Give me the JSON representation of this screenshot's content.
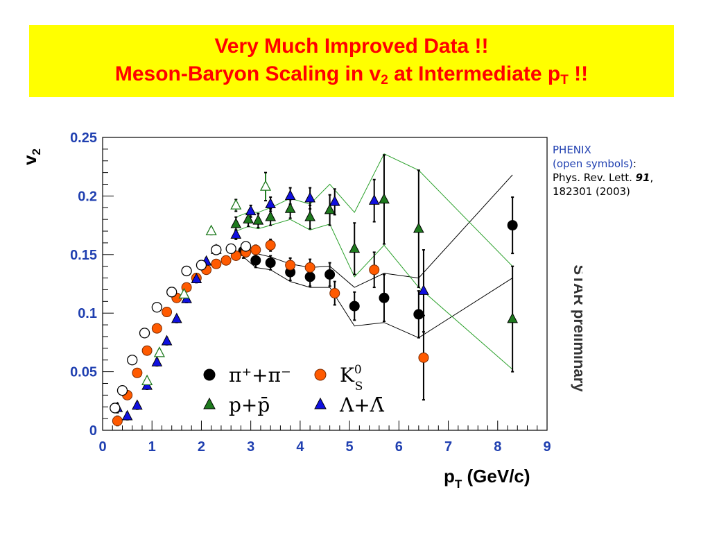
{
  "title": {
    "line1": "Very Much Improved Data !!",
    "line2_a": "Meson-Baryon Scaling in v",
    "line2_sub": "2",
    "line2_b": " at Intermediate p",
    "line2_sub2": "T",
    "line2_c": " !!"
  },
  "note": {
    "line1": "PHENIX",
    "line2": "(open symbols)",
    "line2_colon": ":",
    "line3_a": "Phys. Rev. Lett. ",
    "line3_vol": "91",
    "line3_b": ",",
    "line4": "182301 (2003)"
  },
  "star_label": "STAR preliminary",
  "colors": {
    "title_bg": "#ffff00",
    "title_text": "#ff0000",
    "axis": "#1f3fb0",
    "pion": "#000000",
    "kaon": "#ff5a00",
    "proton": "#1e7a1e",
    "lambda": "#1010e0",
    "phenix_text": "#1f3fb0"
  },
  "chart_data": {
    "type": "scatter",
    "xlabel_main": "p",
    "xlabel_sub": "T",
    "xlabel_unit": " (GeV/c)",
    "ylabel_main": "v",
    "ylabel_sub": "2",
    "xlim": [
      0,
      9
    ],
    "ylim": [
      0,
      0.25
    ],
    "x_ticks": [
      "0",
      "1",
      "2",
      "3",
      "4",
      "5",
      "6",
      "7",
      "8",
      "9"
    ],
    "y_ticks": [
      "0",
      "0.05",
      "0.1",
      "0.15",
      "0.2",
      "0.25"
    ],
    "legend": [
      {
        "key": "pion",
        "text": "π⁺+π⁻"
      },
      {
        "key": "kaon",
        "text": "K",
        "sup": "0",
        "sub": "S"
      },
      {
        "key": "proton",
        "text": "p+p̄"
      },
      {
        "key": "lambda",
        "text": "Λ+Λ̄"
      }
    ],
    "series": [
      {
        "key": "pion_star",
        "marker": "circle",
        "filled": true,
        "color": "#000000",
        "points": [
          {
            "x": 2.85,
            "y": 0.153
          },
          {
            "x": 3.1,
            "y": 0.145
          },
          {
            "x": 3.4,
            "y": 0.143
          },
          {
            "x": 3.8,
            "y": 0.135
          },
          {
            "x": 4.2,
            "y": 0.131
          },
          {
            "x": 4.6,
            "y": 0.133
          },
          {
            "x": 5.1,
            "y": 0.106
          },
          {
            "x": 5.7,
            "y": 0.113
          },
          {
            "x": 6.4,
            "y": 0.099
          },
          {
            "x": 8.3,
            "y": 0.175
          }
        ],
        "errors": [
          0.006,
          0.006,
          0.006,
          0.007,
          0.008,
          0.01,
          0.012,
          0.02,
          0.02,
          0.024
        ]
      },
      {
        "key": "kaon_star",
        "marker": "circle",
        "filled": true,
        "color": "#ff5a00",
        "points": [
          {
            "x": 0.3,
            "y": 0.008
          },
          {
            "x": 0.5,
            "y": 0.03
          },
          {
            "x": 0.7,
            "y": 0.049
          },
          {
            "x": 0.9,
            "y": 0.068
          },
          {
            "x": 1.1,
            "y": 0.087
          },
          {
            "x": 1.3,
            "y": 0.101
          },
          {
            "x": 1.5,
            "y": 0.113
          },
          {
            "x": 1.7,
            "y": 0.122
          },
          {
            "x": 1.9,
            "y": 0.13
          },
          {
            "x": 2.1,
            "y": 0.137
          },
          {
            "x": 2.3,
            "y": 0.142
          },
          {
            "x": 2.5,
            "y": 0.145
          },
          {
            "x": 2.7,
            "y": 0.149
          },
          {
            "x": 2.9,
            "y": 0.152
          },
          {
            "x": 3.1,
            "y": 0.154
          },
          {
            "x": 3.4,
            "y": 0.158
          },
          {
            "x": 3.8,
            "y": 0.141
          },
          {
            "x": 4.2,
            "y": 0.139
          },
          {
            "x": 4.7,
            "y": 0.117
          },
          {
            "x": 5.5,
            "y": 0.137
          },
          {
            "x": 6.5,
            "y": 0.062
          }
        ],
        "errors": [
          0.004,
          0.003,
          0.003,
          0.003,
          0.003,
          0.003,
          0.003,
          0.003,
          0.003,
          0.003,
          0.003,
          0.003,
          0.003,
          0.004,
          0.004,
          0.005,
          0.006,
          0.007,
          0.01,
          0.015,
          0.036
        ]
      },
      {
        "key": "proton_star",
        "marker": "triangle",
        "filled": true,
        "color": "#1e7a1e",
        "points": [
          {
            "x": 2.7,
            "y": 0.176
          },
          {
            "x": 2.95,
            "y": 0.18
          },
          {
            "x": 3.15,
            "y": 0.179
          },
          {
            "x": 3.4,
            "y": 0.182
          },
          {
            "x": 3.8,
            "y": 0.189
          },
          {
            "x": 4.2,
            "y": 0.182
          },
          {
            "x": 4.6,
            "y": 0.188
          },
          {
            "x": 5.1,
            "y": 0.155
          },
          {
            "x": 5.7,
            "y": 0.197
          },
          {
            "x": 6.4,
            "y": 0.172
          },
          {
            "x": 8.3,
            "y": 0.095
          }
        ],
        "errors": [
          0.006,
          0.006,
          0.006,
          0.007,
          0.008,
          0.01,
          0.013,
          0.022,
          0.038,
          0.05,
          0.045
        ]
      },
      {
        "key": "lambda_star",
        "marker": "triangle",
        "filled": true,
        "color": "#1010e0",
        "points": [
          {
            "x": 0.3,
            "y": 0.019
          },
          {
            "x": 0.5,
            "y": 0.012
          },
          {
            "x": 0.7,
            "y": 0.021
          },
          {
            "x": 0.9,
            "y": 0.038
          },
          {
            "x": 1.1,
            "y": 0.058
          },
          {
            "x": 1.3,
            "y": 0.076
          },
          {
            "x": 1.5,
            "y": 0.095
          },
          {
            "x": 1.7,
            "y": 0.112
          },
          {
            "x": 1.9,
            "y": 0.129
          },
          {
            "x": 2.1,
            "y": 0.144
          },
          {
            "x": 2.3,
            "y": 0.154
          },
          {
            "x": 2.7,
            "y": 0.167
          },
          {
            "x": 3.0,
            "y": 0.187
          },
          {
            "x": 3.4,
            "y": 0.193
          },
          {
            "x": 3.8,
            "y": 0.2
          },
          {
            "x": 4.2,
            "y": 0.198
          },
          {
            "x": 4.7,
            "y": 0.195
          },
          {
            "x": 5.5,
            "y": 0.196
          },
          {
            "x": 6.5,
            "y": 0.119
          }
        ],
        "errors": [
          0.004,
          0.003,
          0.003,
          0.003,
          0.003,
          0.003,
          0.003,
          0.003,
          0.003,
          0.003,
          0.003,
          0.004,
          0.005,
          0.006,
          0.007,
          0.009,
          0.011,
          0.018,
          0.035
        ]
      },
      {
        "key": "pion_phenix",
        "marker": "circle",
        "filled": false,
        "color": "#000000",
        "points": [
          {
            "x": 0.25,
            "y": 0.019
          },
          {
            "x": 0.4,
            "y": 0.034
          },
          {
            "x": 0.6,
            "y": 0.06
          },
          {
            "x": 0.85,
            "y": 0.083
          },
          {
            "x": 1.1,
            "y": 0.105
          },
          {
            "x": 1.4,
            "y": 0.118
          },
          {
            "x": 1.7,
            "y": 0.136
          },
          {
            "x": 2.0,
            "y": 0.141
          },
          {
            "x": 2.3,
            "y": 0.154
          },
          {
            "x": 2.6,
            "y": 0.155
          },
          {
            "x": 2.9,
            "y": 0.157
          }
        ]
      },
      {
        "key": "proton_phenix",
        "marker": "triangle",
        "filled": false,
        "color": "#1e7a1e",
        "points": [
          {
            "x": 0.9,
            "y": 0.042
          },
          {
            "x": 1.15,
            "y": 0.066
          },
          {
            "x": 1.65,
            "y": 0.116
          },
          {
            "x": 2.2,
            "y": 0.17
          },
          {
            "x": 2.7,
            "y": 0.192
          },
          {
            "x": 3.3,
            "y": 0.208
          }
        ],
        "errors": [
          0,
          0,
          0,
          0.003,
          0.005,
          0.012
        ]
      }
    ],
    "bands": [
      {
        "key": "pion_band",
        "color": "#000000",
        "upper": [
          [
            2.85,
            0.158
          ],
          [
            3.1,
            0.151
          ],
          [
            3.4,
            0.148
          ],
          [
            3.8,
            0.142
          ],
          [
            4.2,
            0.139
          ],
          [
            4.6,
            0.14
          ],
          [
            5.1,
            0.122
          ],
          [
            5.7,
            0.134
          ],
          [
            6.4,
            0.13
          ],
          [
            8.3,
            0.218
          ]
        ],
        "lower": [
          [
            2.85,
            0.148
          ],
          [
            3.1,
            0.139
          ],
          [
            3.4,
            0.137
          ],
          [
            3.8,
            0.127
          ],
          [
            4.2,
            0.122
          ],
          [
            4.6,
            0.122
          ],
          [
            5.1,
            0.089
          ],
          [
            5.7,
            0.092
          ],
          [
            6.4,
            0.079
          ],
          [
            8.3,
            0.13
          ]
        ]
      },
      {
        "key": "proton_band",
        "color": "#2aa02a",
        "upper": [
          [
            2.7,
            0.182
          ],
          [
            2.95,
            0.186
          ],
          [
            3.15,
            0.186
          ],
          [
            3.4,
            0.19
          ],
          [
            3.8,
            0.198
          ],
          [
            4.2,
            0.193
          ],
          [
            4.6,
            0.21
          ],
          [
            5.1,
            0.186
          ],
          [
            5.7,
            0.236
          ],
          [
            6.4,
            0.222
          ],
          [
            8.3,
            0.14
          ]
        ],
        "lower": [
          [
            2.7,
            0.17
          ],
          [
            2.95,
            0.174
          ],
          [
            3.15,
            0.172
          ],
          [
            3.4,
            0.175
          ],
          [
            3.8,
            0.18
          ],
          [
            4.2,
            0.171
          ],
          [
            4.6,
            0.176
          ],
          [
            5.1,
            0.131
          ],
          [
            5.7,
            0.158
          ],
          [
            6.4,
            0.122
          ],
          [
            8.3,
            0.052
          ]
        ]
      }
    ]
  }
}
